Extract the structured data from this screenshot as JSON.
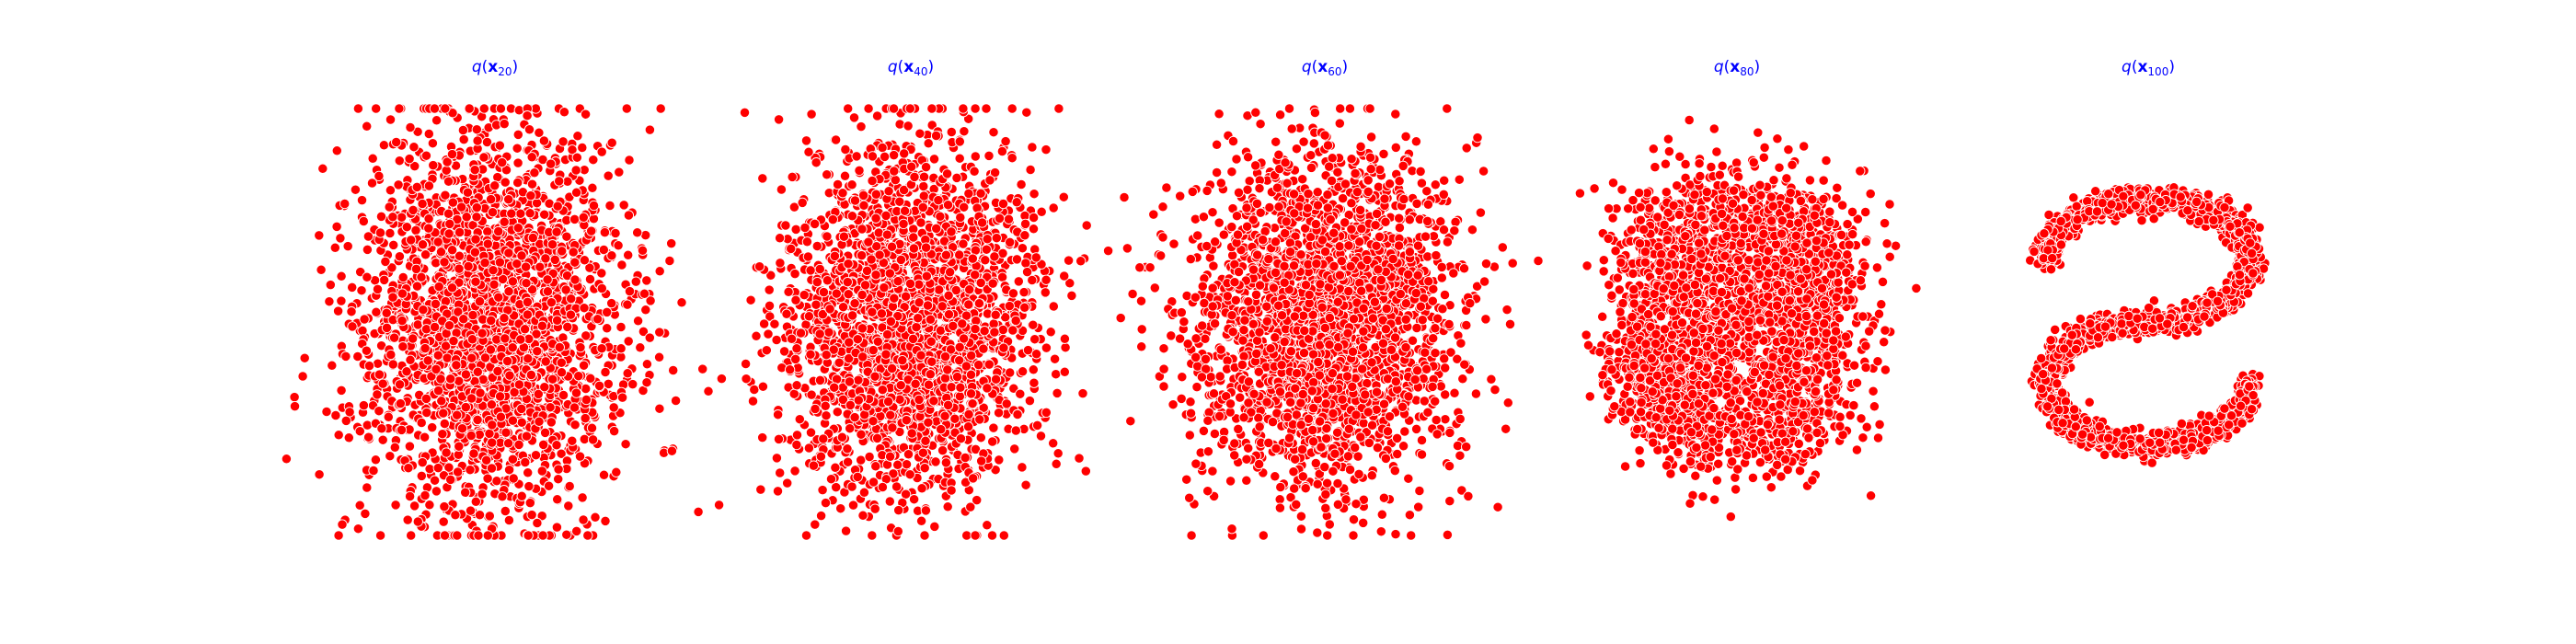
{
  "figure": {
    "background": "#ffffff"
  },
  "style": {
    "point_color": "#ff0000",
    "edge_color": "#ffffff",
    "title_color": "#0000ff"
  },
  "chart_data": [
    {
      "type": "scatter",
      "title": "q(x20)",
      "title_parts": {
        "func": "q",
        "open": "(",
        "var": "x",
        "sub": "20",
        "close": ")"
      },
      "n_points": 10000,
      "xlim": [
        -4,
        4
      ],
      "ylim": [
        -4,
        4
      ],
      "axis": "off",
      "distribution": {
        "kind": "blend",
        "spiral_weight": 0.2,
        "noise_std": 1.18,
        "aspect_y": 1.45
      }
    },
    {
      "type": "scatter",
      "title": "q(x40)",
      "title_parts": {
        "func": "q",
        "open": "(",
        "var": "x",
        "sub": "40",
        "close": ")"
      },
      "n_points": 10000,
      "xlim": [
        -4,
        4
      ],
      "ylim": [
        -4,
        4
      ],
      "axis": "off",
      "distribution": {
        "kind": "blend",
        "spiral_weight": 0.4,
        "noise_std": 1.05,
        "aspect_y": 1.4
      }
    },
    {
      "type": "scatter",
      "title": "q(x60)",
      "title_parts": {
        "func": "q",
        "open": "(",
        "var": "x",
        "sub": "60",
        "close": ")"
      },
      "n_points": 10000,
      "xlim": [
        -4,
        4
      ],
      "ylim": [
        -4,
        4
      ],
      "axis": "off",
      "distribution": {
        "kind": "blend",
        "spiral_weight": 0.6,
        "noise_std": 0.9,
        "aspect_y": 1.3
      }
    },
    {
      "type": "scatter",
      "title": "q(x80)",
      "title_parts": {
        "func": "q",
        "open": "(",
        "var": "x",
        "sub": "80",
        "close": ")"
      },
      "n_points": 10000,
      "xlim": [
        -4,
        4
      ],
      "ylim": [
        -4,
        4
      ],
      "axis": "off",
      "distribution": {
        "kind": "blend",
        "spiral_weight": 0.8,
        "noise_std": 0.6,
        "aspect_y": 1.1
      }
    },
    {
      "type": "scatter",
      "title": "q(x100)",
      "title_parts": {
        "func": "q",
        "open": "(",
        "var": "x",
        "sub": "100",
        "close": ")"
      },
      "n_points": 10000,
      "xlim": [
        -4,
        4
      ],
      "ylim": [
        -4,
        4
      ],
      "axis": "off",
      "distribution": {
        "kind": "s_curve",
        "spiral_weight": 1.0,
        "noise_std": 0.12,
        "aspect_y": 1.0
      }
    }
  ]
}
